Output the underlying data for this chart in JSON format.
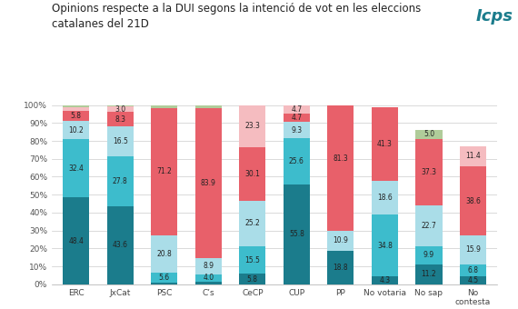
{
  "title": "Opinions respecte a la DUI segons la intenció de vot en les eleccions\ncatalanes del 21D",
  "categories": [
    "ERC",
    "JxCat",
    "PSC",
    "C’s",
    "CeCP",
    "CUP",
    "PP",
    "No votaria",
    "No sap",
    "No\ncontesta"
  ],
  "segments": {
    "s1": [
      48.4,
      43.6,
      0.8,
      1.6,
      5.8,
      55.8,
      18.8,
      4.3,
      11.2,
      4.5
    ],
    "s2": [
      32.4,
      27.8,
      5.6,
      4.0,
      15.5,
      25.6,
      0.0,
      34.8,
      9.9,
      6.8
    ],
    "s3": [
      10.2,
      16.5,
      20.8,
      8.9,
      25.2,
      9.3,
      10.9,
      18.6,
      22.7,
      15.9
    ],
    "s4": [
      5.8,
      8.3,
      71.2,
      83.9,
      30.1,
      4.7,
      81.3,
      41.3,
      37.3,
      38.6
    ],
    "s5": [
      1.8,
      3.0,
      0.0,
      0.0,
      23.3,
      4.7,
      0.0,
      0.0,
      0.0,
      11.4
    ],
    "s6": [
      1.3,
      0.8,
      1.6,
      1.6,
      0.0,
      0.0,
      0.0,
      0.0,
      5.0,
      0.0
    ]
  },
  "colors": [
    "#1b7c8c",
    "#3dbccc",
    "#aadde8",
    "#e8606a",
    "#f5bcc0",
    "#b0cc9a"
  ],
  "ylim": [
    0,
    100
  ],
  "yticks": [
    0,
    10,
    20,
    30,
    40,
    50,
    60,
    70,
    80,
    90,
    100
  ],
  "ytick_labels": [
    "0%",
    "10%",
    "20%",
    "30%",
    "40%",
    "50%",
    "60%",
    "70%",
    "80%",
    "90%",
    "100%"
  ],
  "bar_width": 0.6,
  "background_color": "#ffffff",
  "title_fontsize": 8.5,
  "tick_fontsize": 6.5,
  "label_fontsize": 5.5,
  "min_label_val": 2.5
}
